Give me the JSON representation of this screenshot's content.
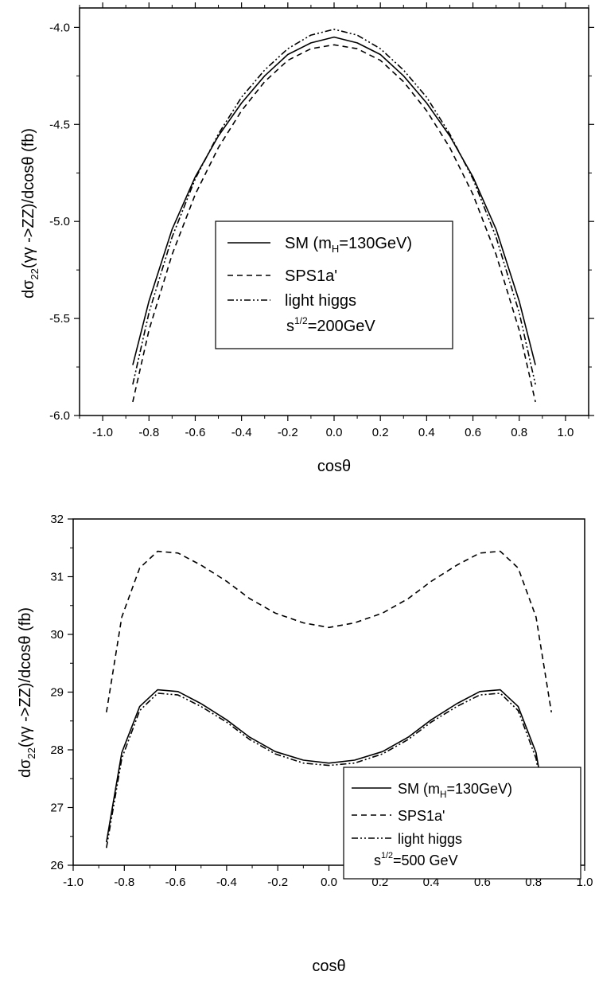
{
  "chart_data": [
    {
      "type": "line",
      "xlabel": "cosθ",
      "ylabel_parts": [
        "dσ",
        "22",
        "(γγ ->ZZ)/dcosθ (fb)"
      ],
      "xlim": [
        -1.1,
        1.1
      ],
      "ylim": [
        -6.0,
        -3.9
      ],
      "xticks": [
        -1.0,
        -0.8,
        -0.6,
        -0.4,
        -0.2,
        0.0,
        0.2,
        0.4,
        0.6,
        0.8,
        1.0
      ],
      "xtick_labels": [
        "-1.0",
        "-0.8",
        "-0.6",
        "-0.4",
        "-0.2",
        "0.0",
        "0.2",
        "0.4",
        "0.6",
        "0.8",
        "1.0"
      ],
      "yticks": [
        -6.0,
        -5.5,
        -5.0,
        -4.5,
        -4.0
      ],
      "ytick_labels": [
        "-6.0",
        "-5.5",
        "-5.0",
        "-4.5",
        "-4.0"
      ],
      "legend": {
        "position": "center",
        "entries": [
          {
            "text": "SM (m",
            "sub": "H",
            "tail": "=130GeV)",
            "style": "solid"
          },
          {
            "text": "SPS1a'",
            "style": "dashed"
          },
          {
            "text": "light higgs",
            "style": "dashdotdot"
          }
        ],
        "note": {
          "base": "s",
          "sup": "1/2",
          "tail": "=200GeV"
        }
      },
      "series": [
        {
          "style": "solid",
          "x": [
            -0.87,
            -0.8,
            -0.7,
            -0.6,
            -0.5,
            -0.4,
            -0.3,
            -0.2,
            -0.1,
            0.0,
            0.1,
            0.2,
            0.3,
            0.4,
            0.5,
            0.6,
            0.7,
            0.8,
            0.87
          ],
          "y": [
            -5.74,
            -5.41,
            -5.04,
            -4.77,
            -4.56,
            -4.39,
            -4.25,
            -4.14,
            -4.08,
            -4.05,
            -4.08,
            -4.14,
            -4.25,
            -4.39,
            -4.56,
            -4.77,
            -5.04,
            -5.41,
            -5.74
          ]
        },
        {
          "style": "dashed",
          "x": [
            -0.87,
            -0.8,
            -0.7,
            -0.6,
            -0.5,
            -0.4,
            -0.3,
            -0.2,
            -0.1,
            0.0,
            0.1,
            0.2,
            0.3,
            0.4,
            0.5,
            0.6,
            0.7,
            0.8,
            0.87
          ],
          "y": [
            -5.93,
            -5.56,
            -5.17,
            -4.86,
            -4.62,
            -4.43,
            -4.28,
            -4.17,
            -4.11,
            -4.09,
            -4.11,
            -4.17,
            -4.28,
            -4.43,
            -4.62,
            -4.86,
            -5.17,
            -5.56,
            -5.93
          ]
        },
        {
          "style": "dashdotdot",
          "x": [
            -0.87,
            -0.8,
            -0.7,
            -0.6,
            -0.5,
            -0.4,
            -0.3,
            -0.2,
            -0.1,
            0.0,
            0.1,
            0.2,
            0.3,
            0.4,
            0.5,
            0.6,
            0.7,
            0.8,
            0.87
          ],
          "y": [
            -5.84,
            -5.47,
            -5.08,
            -4.78,
            -4.55,
            -4.36,
            -4.22,
            -4.11,
            -4.04,
            -4.01,
            -4.04,
            -4.11,
            -4.22,
            -4.36,
            -4.55,
            -4.78,
            -5.08,
            -5.47,
            -5.84
          ]
        }
      ]
    },
    {
      "type": "line",
      "xlabel": "cosθ",
      "ylabel_parts": [
        "dσ",
        "22",
        "(γγ ->ZZ)/dcosθ (fb)"
      ],
      "xlim": [
        -1.0,
        1.0
      ],
      "ylim": [
        26,
        32
      ],
      "xticks": [
        -1.0,
        -0.8,
        -0.6,
        -0.4,
        -0.2,
        0.0,
        0.2,
        0.4,
        0.6,
        0.8,
        1.0
      ],
      "xtick_labels": [
        "-1.0",
        "-0.8",
        "-0.6",
        "-0.4",
        "-0.2",
        "0.0",
        "0.2",
        "0.4",
        "0.6",
        "0.8",
        "1.0"
      ],
      "yticks": [
        26,
        27,
        28,
        29,
        30,
        31,
        32
      ],
      "ytick_labels": [
        "26",
        "27",
        "28",
        "29",
        "30",
        "31",
        "32"
      ],
      "legend": {
        "position": "bottom-right",
        "entries": [
          {
            "text": "SM (m",
            "sub": "H",
            "tail": "=130GeV)",
            "style": "solid"
          },
          {
            "text": "SPS1a'",
            "style": "dashed"
          },
          {
            "text": "light higgs",
            "style": "dashdotdot"
          }
        ],
        "note": {
          "base": "s",
          "sup": "1/2",
          "tail": "=500 GeV"
        }
      },
      "series": [
        {
          "style": "solid",
          "x": [
            -0.87,
            -0.81,
            -0.74,
            -0.67,
            -0.59,
            -0.5,
            -0.4,
            -0.31,
            -0.21,
            -0.1,
            0.0,
            0.1,
            0.21,
            0.31,
            0.4,
            0.5,
            0.59,
            0.67,
            0.74,
            0.81,
            0.87
          ],
          "y": [
            26.4,
            27.95,
            28.75,
            29.04,
            29.01,
            28.8,
            28.52,
            28.22,
            27.97,
            27.82,
            27.77,
            27.82,
            27.97,
            28.22,
            28.52,
            28.8,
            29.01,
            29.04,
            28.75,
            27.95,
            26.4
          ]
        },
        {
          "style": "dashed",
          "x": [
            -0.87,
            -0.81,
            -0.74,
            -0.67,
            -0.59,
            -0.5,
            -0.4,
            -0.31,
            -0.21,
            -0.1,
            0.0,
            0.1,
            0.21,
            0.31,
            0.4,
            0.5,
            0.59,
            0.67,
            0.74,
            0.81,
            0.87
          ],
          "y": [
            28.65,
            30.3,
            31.15,
            31.44,
            31.41,
            31.2,
            30.92,
            30.62,
            30.37,
            30.2,
            30.12,
            30.2,
            30.37,
            30.62,
            30.92,
            31.2,
            31.41,
            31.44,
            31.15,
            30.3,
            28.65
          ]
        },
        {
          "style": "dashdotdot",
          "x": [
            -0.87,
            -0.81,
            -0.74,
            -0.67,
            -0.59,
            -0.5,
            -0.4,
            -0.31,
            -0.21,
            -0.1,
            0.0,
            0.1,
            0.21,
            0.31,
            0.4,
            0.5,
            0.59,
            0.67,
            0.74,
            0.81,
            0.87
          ],
          "y": [
            26.3,
            27.85,
            28.68,
            28.98,
            28.95,
            28.75,
            28.48,
            28.18,
            27.93,
            27.77,
            27.73,
            27.77,
            27.93,
            28.18,
            28.48,
            28.75,
            28.95,
            28.98,
            28.68,
            27.85,
            26.3
          ]
        }
      ]
    }
  ]
}
